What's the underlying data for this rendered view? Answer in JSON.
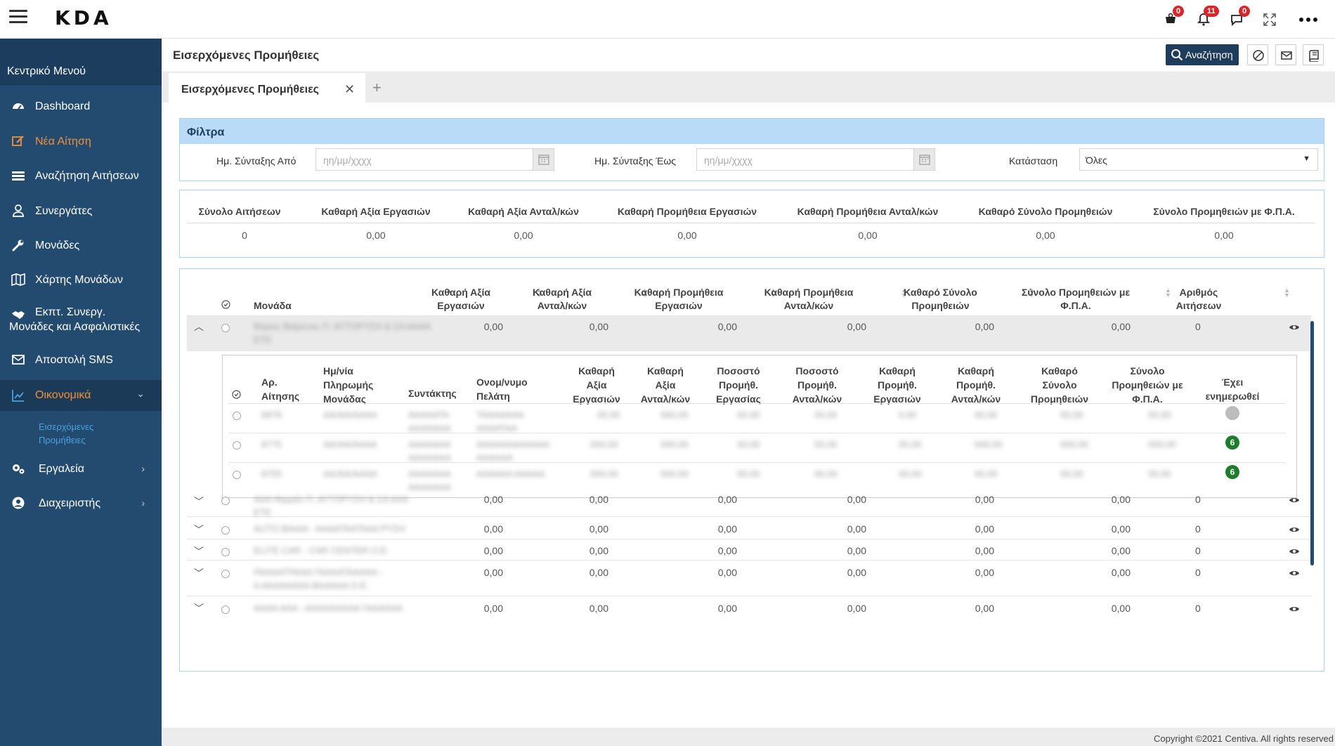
{
  "app": {
    "logo": "KDA",
    "more_label": "•••"
  },
  "notifications": {
    "cart_count": "0",
    "bell_count": "11",
    "chat_count": "0"
  },
  "sidebar": {
    "title": "Κεντρικό Μενού",
    "items": [
      {
        "label": "Dashboard",
        "icon": "dashboard-icon"
      },
      {
        "label": "Νέα Αίτηση",
        "icon": "edit-icon"
      },
      {
        "label": "Αναζήτηση Αιτήσεων",
        "icon": "list-icon"
      },
      {
        "label": "Συνεργάτες",
        "icon": "user-icon"
      },
      {
        "label": "Μονάδες",
        "icon": "wrench-icon"
      },
      {
        "label": "Χάρτης Μονάδων",
        "icon": "map-icon"
      },
      {
        "label_line1": "Εκπτ. Συνεργ.",
        "label_line2": "Μονάδες και Ασφαλιστικές",
        "icon": "handshake-icon"
      },
      {
        "label": "Αποστολή SMS",
        "icon": "envelope-icon"
      },
      {
        "label": "Οικονομικά",
        "icon": "chart-icon"
      },
      {
        "label": "Εργαλεία",
        "icon": "gears-icon"
      },
      {
        "label": "Διαχειριστής",
        "icon": "user-circle-icon"
      }
    ],
    "sub_item_line1": "Εισερχόμενες",
    "sub_item_line2": "Προμήθειες",
    "chevron_down": "⌄",
    "chevron_right": "›"
  },
  "header": {
    "title": "Εισερχόμενες Προμήθειες",
    "search_label": "Αναζήτηση"
  },
  "tabs": {
    "active": "Εισερχόμενες Προμήθειες",
    "close": "✕",
    "add": "+"
  },
  "filters": {
    "title": "Φίλτρα",
    "date_from_label": "Ημ. Σύνταξης Από",
    "date_to_label": "Ημ. Σύνταξης Έως",
    "date_placeholder": "ηη/μμ/χχχχ",
    "status_label": "Κατάσταση",
    "status_value": "Όλες"
  },
  "totals": {
    "headers": [
      "Σύνολο Αιτήσεων",
      "Καθαρή Αξία Εργασιών",
      "Καθαρή Αξία Ανταλ/κών",
      "Καθαρή Προμήθεια Εργασιών",
      "Καθαρή Προμήθεια Ανταλ/κών",
      "Καθαρό Σύνολο Προμηθειών",
      "Σύνολο Προμηθειών με Φ.Π.Α."
    ],
    "values": [
      "0",
      "0,00",
      "0,00",
      "0,00",
      "0,00",
      "0,00",
      "0,00"
    ]
  },
  "grid": {
    "columns": [
      {
        "l1": "Μονάδα",
        "l2": ""
      },
      {
        "l1": "Καθαρή Αξία",
        "l2": "Εργασιών"
      },
      {
        "l1": "Καθαρή Αξία",
        "l2": "Ανταλ/κών"
      },
      {
        "l1": "Καθαρή Προμήθεια",
        "l2": "Εργασιών"
      },
      {
        "l1": "Καθαρή Προμήθεια",
        "l2": "Ανταλ/κών"
      },
      {
        "l1": "Καθαρό Σύνολο",
        "l2": "Προμηθειών"
      },
      {
        "l1": "Σύνολο Προμηθειών με",
        "l2": "Φ.Π.Α."
      },
      {
        "l1": "Αριθμός",
        "l2": "Αιτήσεων"
      }
    ],
    "rows": [
      {
        "unit_l1": "Βόρεις Βιάρενος Π. ΑΥΤΟΡΥΣΗ & ΣΑ ΑΑΑΑ",
        "unit_l2": "ΕΤΕ",
        "v": [
          "0,00",
          "0,00",
          "0,00",
          "0,00",
          "0,00",
          "0,00"
        ],
        "count": "0",
        "expander": "︿"
      },
      {
        "unit_l1": "ΑΑΑ Φιρμάν Π. ΑΥΤΟΡΥΣΗ & ΣΑ ΑΑΑ",
        "unit_l2": "ΕΤΕ",
        "v": [
          "0,00",
          "0,00",
          "0,00",
          "0,00",
          "0,00",
          "0,00"
        ],
        "count": "0",
        "expander": "﹀"
      },
      {
        "unit_l1": "AUTO ΒΙΑΑΑ - ΑΑΑΑΤΑΑΤΑΑΑ ΡΥΣΗ",
        "unit_l2": "",
        "v": [
          "0,00",
          "0,00",
          "0,00",
          "0,00",
          "0,00",
          "0,00"
        ],
        "count": "0",
        "expander": "﹀"
      },
      {
        "unit_l1": "ELITE CAR - CAR CENTER Ο.Ε.",
        "unit_l2": "",
        "v": [
          "0,00",
          "0,00",
          "0,00",
          "0,00",
          "0,00",
          "0,00"
        ],
        "count": "0",
        "expander": "﹀"
      },
      {
        "unit_l1": "ΡΑΑΑΑΤΡΑΑΑ ΓΑΑΑΑΤΑΑΑΑΑ -",
        "unit_l2": "Α ΑΑΑΑΑΑΑΑ ΒΑΑΑΑΑ Ο.Ε.",
        "v": [
          "0,00",
          "0,00",
          "0,00",
          "0,00",
          "0,00",
          "0,00"
        ],
        "count": "0",
        "expander": "﹀"
      },
      {
        "unit_l1": "ΑΑΑΑ ΑΑΑ - ΑΑΑΑΑΑΑΑΑ ΓΑΑΑΑΑΑ",
        "unit_l2": "",
        "v": [
          "0,00",
          "0,00",
          "0,00",
          "0,00",
          "0,00",
          "0,00"
        ],
        "count": "0",
        "expander": "﹀"
      }
    ]
  },
  "detail": {
    "columns": [
      [
        "Αρ.",
        "Αίτησης"
      ],
      [
        "Ημ/νία",
        "Πληρωμής",
        "Μονάδας"
      ],
      [
        "Συντάκτης"
      ],
      [
        "Ονομ/νυμο",
        "Πελάτη"
      ],
      [
        "Καθαρή",
        "Αξία",
        "Εργασιών"
      ],
      [
        "Καθαρή",
        "Αξία",
        "Ανταλ/κών"
      ],
      [
        "Ποσοστό",
        "Προμήθ.",
        "Εργασίας"
      ],
      [
        "Ποσοστό",
        "Προμήθ.",
        "Ανταλ/κών"
      ],
      [
        "Καθαρή",
        "Προμήθ.",
        "Εργασιών"
      ],
      [
        "Καθαρή",
        "Προμήθ.",
        "Ανταλ/κών"
      ],
      [
        "Καθαρό",
        "Σύνολο",
        "Προμηθειών"
      ],
      [
        "Σύνολο",
        "Προμηθειών με",
        "Φ.Π.Α."
      ],
      [
        "Έχει",
        "ενημερωθεί"
      ]
    ],
    "rows": [
      {
        "c": [
          "6878",
          "ΑΑ/ΑΑ/ΑΑΑΑ",
          "ΑΑΑΑΑΤΑ",
          "ΤΑΑΑΑΑΑΑ",
          "00,00",
          "000,00",
          "00,00",
          "00,00",
          "0,00",
          "00,00",
          "00,00",
          "00,00"
        ],
        "c2": [
          "",
          "",
          "ΑΑΑΑΑΑΑ",
          "ΑΑΑΑΤΑΑ",
          "",
          "",
          "",
          "",
          "",
          "",
          "",
          ""
        ],
        "status": "",
        "status_kind": "grey"
      },
      {
        "c": [
          "8775",
          "ΑΑ/ΑΑ/ΑΑΑΑ",
          "ΑΑΑΑΑΑΑ",
          "ΑΑΑΑΑΑΑΑΑΑΑΑ",
          "000,00",
          "000,00",
          "00,00",
          "00,00",
          "00,00",
          "000,00",
          "000,00",
          "000,00"
        ],
        "c2": [
          "",
          "",
          "ΑΑΑΑΑΑΑ",
          "ΑΑΑΑΑΑ",
          "",
          "",
          "",
          "",
          "",
          "",
          "",
          ""
        ],
        "status": "6",
        "status_kind": "green"
      },
      {
        "c": [
          "8755",
          "ΑΑ/ΑΑ/ΑΑΑΑ",
          "ΑΑΑΑΑΑΑ",
          "ΑΑΑΑΑΑ ΑΑΑΑΑ",
          "000,00",
          "000,00",
          "00,00",
          "00,00",
          "00,00",
          "00,00",
          "00,00",
          "00,00"
        ],
        "c2": [
          "",
          "",
          "ΑΑΑΑΑΑΑ",
          "",
          "",
          "",
          "",
          "",
          "",
          "",
          "",
          ""
        ],
        "status": "6",
        "status_kind": "green"
      }
    ]
  },
  "footer": {
    "copyright": "Copyright ©2021 Centiva. All rights reserved"
  },
  "colors": {
    "sidebar": "#234a6f",
    "accent_orange": "#f0913a",
    "filter_header": "#b9dbf7",
    "status_green": "#1d7d2a",
    "badge_red": "#d9262c"
  }
}
